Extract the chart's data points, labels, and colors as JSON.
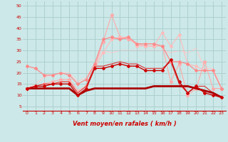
{
  "background_color": "#cce8e8",
  "grid_color": "#aacccc",
  "xlabel": "Vent moyen/en rafales ( km/h )",
  "ylabel_ticks": [
    5,
    10,
    15,
    20,
    25,
    30,
    35,
    40,
    45,
    50
  ],
  "x_ticks": [
    0,
    1,
    2,
    3,
    4,
    5,
    6,
    7,
    8,
    9,
    10,
    11,
    12,
    13,
    14,
    15,
    16,
    17,
    18,
    19,
    20,
    21,
    22,
    23
  ],
  "xlim": [
    -0.5,
    23.5
  ],
  "ylim": [
    3,
    52
  ],
  "series": [
    {
      "x": [
        0,
        1,
        2,
        3,
        4,
        5,
        6,
        7,
        8,
        9,
        10,
        11,
        12,
        13,
        14,
        15,
        16,
        17,
        18,
        19,
        20,
        21,
        22,
        23
      ],
      "y": [
        13,
        14,
        14,
        15,
        15,
        15,
        10,
        13,
        22,
        22,
        23,
        24,
        23,
        23,
        21,
        21,
        21,
        26,
        16,
        11,
        14,
        11,
        10,
        9
      ],
      "color": "#cc0000",
      "lw": 1.0,
      "marker": "D",
      "ms": 2.0,
      "zorder": 5
    },
    {
      "x": [
        0,
        1,
        2,
        3,
        4,
        5,
        6,
        7,
        8,
        9,
        10,
        11,
        12,
        13,
        14,
        15,
        16,
        17,
        18,
        19,
        20,
        21,
        22,
        23
      ],
      "y": [
        13,
        13,
        13,
        13,
        13,
        13,
        10,
        12,
        13,
        13,
        13,
        13,
        13,
        13,
        13,
        14,
        14,
        14,
        14,
        14,
        13,
        12,
        11,
        9
      ],
      "color": "#aa0000",
      "lw": 2.0,
      "marker": null,
      "ms": 0,
      "zorder": 4
    },
    {
      "x": [
        0,
        1,
        2,
        3,
        4,
        5,
        6,
        7,
        8,
        9,
        10,
        11,
        12,
        13,
        14,
        15,
        16,
        17,
        18,
        19,
        20,
        21,
        22,
        23
      ],
      "y": [
        13,
        14,
        15,
        15,
        16,
        16,
        11,
        14,
        23,
        23,
        24,
        25,
        24,
        24,
        22,
        22,
        22,
        25,
        15,
        11,
        14,
        14,
        11,
        9
      ],
      "color": "#dd3333",
      "lw": 0.8,
      "marker": null,
      "ms": 0,
      "zorder": 3
    },
    {
      "x": [
        0,
        1,
        2,
        3,
        4,
        5,
        6,
        7,
        8,
        9,
        10,
        11,
        12,
        13,
        14,
        15,
        16,
        17,
        18,
        19,
        20,
        21,
        22,
        23
      ],
      "y": [
        23,
        22,
        19,
        19,
        20,
        19,
        15,
        17,
        24,
        35,
        36,
        35,
        36,
        33,
        33,
        33,
        32,
        25,
        25,
        24,
        21,
        21,
        21,
        13
      ],
      "color": "#ff8888",
      "lw": 0.9,
      "marker": "D",
      "ms": 2.0,
      "zorder": 3
    },
    {
      "x": [
        0,
        1,
        2,
        3,
        4,
        5,
        6,
        7,
        8,
        9,
        10,
        11,
        12,
        13,
        14,
        15,
        16,
        17,
        18,
        19,
        20,
        21,
        22,
        23
      ],
      "y": [
        13,
        14,
        15,
        16,
        17,
        17,
        12,
        14,
        22,
        34,
        46,
        36,
        35,
        33,
        32,
        32,
        32,
        16,
        24,
        10,
        13,
        25,
        13,
        13
      ],
      "color": "#ffaaaa",
      "lw": 0.8,
      "marker": "*",
      "ms": 3.5,
      "zorder": 2
    },
    {
      "x": [
        0,
        1,
        2,
        3,
        4,
        5,
        6,
        7,
        8,
        9,
        10,
        11,
        12,
        13,
        14,
        15,
        16,
        17,
        18,
        19,
        20,
        21,
        22,
        23
      ],
      "y": [
        13,
        14,
        14,
        15,
        16,
        16,
        12,
        14,
        22,
        29,
        35,
        36,
        36,
        32,
        32,
        32,
        38,
        32,
        37,
        24,
        23,
        21,
        21,
        13
      ],
      "color": "#ffbbbb",
      "lw": 0.8,
      "marker": "D",
      "ms": 2.0,
      "zorder": 2
    },
    {
      "x": [
        0,
        1,
        2,
        3,
        4,
        5,
        6,
        7,
        8,
        9,
        10,
        11,
        12,
        13,
        14,
        15,
        16,
        17,
        18,
        19,
        20,
        21,
        22,
        23
      ],
      "y": [
        13,
        15,
        18,
        19,
        20,
        20,
        16,
        18,
        24,
        30,
        29,
        30,
        30,
        30,
        30,
        30,
        30,
        29,
        30,
        29,
        31,
        22,
        22,
        13
      ],
      "color": "#ffcccc",
      "lw": 0.8,
      "marker": null,
      "ms": 0,
      "zorder": 1
    }
  ],
  "arrow_color": "#cc0000",
  "tick_label_color": "#cc0000",
  "xlabel_color": "#cc0000",
  "tick_fontsize": 4.5,
  "xlabel_fontsize": 6.0
}
